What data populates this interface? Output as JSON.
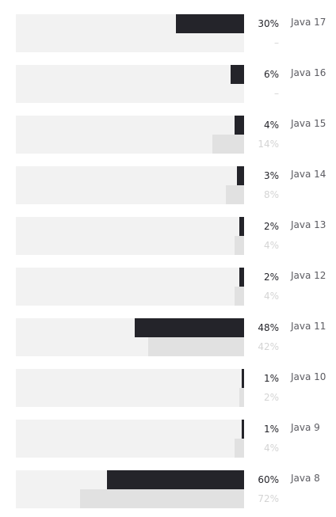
{
  "chart_data": {
    "type": "bar",
    "orientation": "horizontal",
    "xlim": [
      0,
      100
    ],
    "categories": [
      "Java 17",
      "Java 16",
      "Java 15",
      "Java 14",
      "Java 13",
      "Java 12",
      "Java 11",
      "Java 10",
      "Java 9",
      "Java 8"
    ],
    "series": [
      {
        "values": [
          30,
          6,
          4,
          3,
          2,
          2,
          48,
          1,
          1,
          60
        ],
        "labels": [
          "30%",
          "6%",
          "4%",
          "3%",
          "2%",
          "2%",
          "48%",
          "1%",
          "1%",
          "60%"
        ],
        "color": "#24242a"
      },
      {
        "values": [
          null,
          null,
          14,
          8,
          4,
          4,
          42,
          2,
          4,
          72
        ],
        "labels": [
          "–",
          "–",
          "14%",
          "8%",
          "4%",
          "4%",
          "42%",
          "2%",
          "4%",
          "72%"
        ],
        "color": "#e1e1e1"
      }
    ]
  }
}
